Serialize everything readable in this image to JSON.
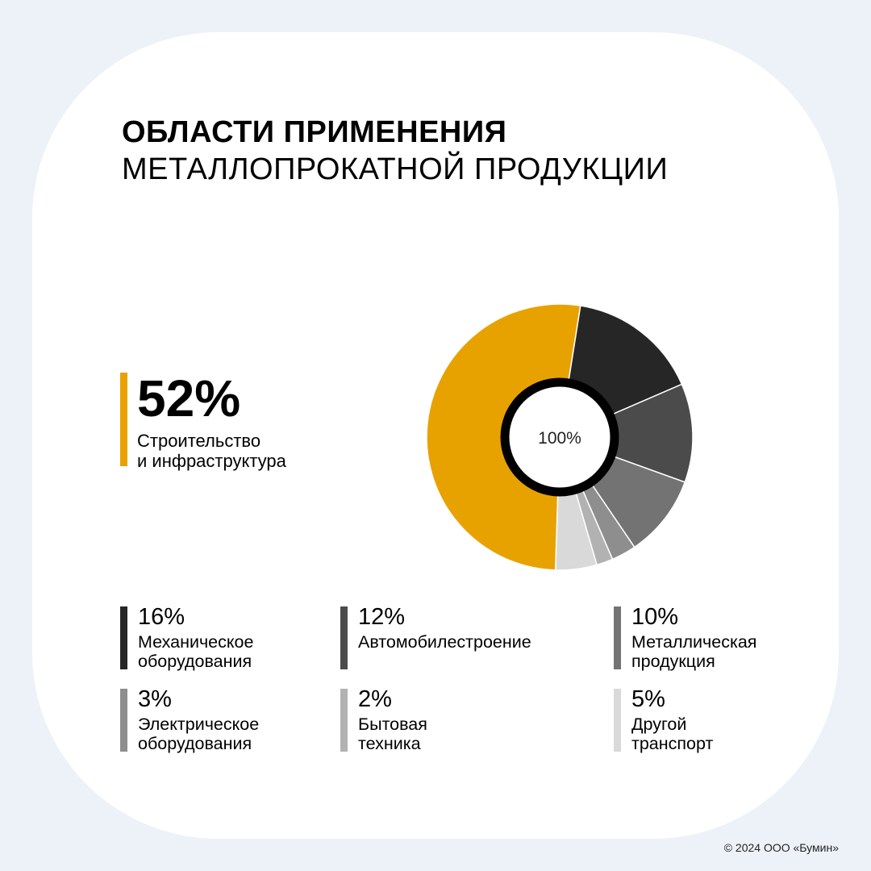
{
  "title": {
    "line1": "ОБЛАСТИ ПРИМЕНЕНИЯ",
    "line2": "МЕТАЛЛОПРОКАТНОЙ ПРОДУКЦИИ"
  },
  "chart_data": {
    "type": "pie",
    "center_label": "100%",
    "slices": [
      {
        "label": "Строительство\nи инфраструктура",
        "value": 52,
        "display": "52%",
        "color": "#e8a200"
      },
      {
        "label": "Механическое\nоборудования",
        "value": 16,
        "display": "16%",
        "color": "#262626"
      },
      {
        "label": "Автомобилестроение",
        "value": 12,
        "display": "12%",
        "color": "#4b4b4b"
      },
      {
        "label": "Металлическая\nпродукция",
        "value": 10,
        "display": "10%",
        "color": "#737373"
      },
      {
        "label": "Электрическое\nоборудования",
        "value": 3,
        "display": "3%",
        "color": "#8e8e8e"
      },
      {
        "label": "Бытовая\nтехника",
        "value": 2,
        "display": "2%",
        "color": "#b2b2b2"
      },
      {
        "label": "Другой\nтранспорт",
        "value": 5,
        "display": "5%",
        "color": "#d9d9d9"
      }
    ]
  },
  "copyright": "© 2024 ООО «Бумин»"
}
